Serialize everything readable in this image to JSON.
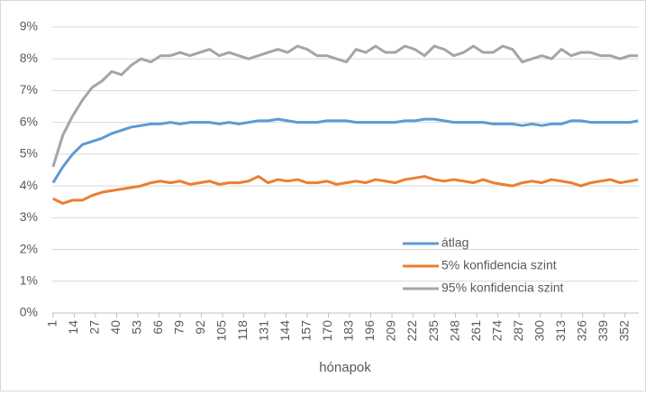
{
  "chart_data": {
    "type": "line",
    "x_label": "hónapok",
    "x": [
      1,
      7,
      13,
      19,
      25,
      31,
      37,
      43,
      49,
      55,
      61,
      67,
      73,
      79,
      85,
      91,
      97,
      103,
      109,
      115,
      121,
      127,
      133,
      139,
      145,
      151,
      157,
      163,
      169,
      175,
      181,
      187,
      193,
      199,
      205,
      211,
      217,
      223,
      229,
      235,
      241,
      247,
      253,
      259,
      265,
      271,
      277,
      283,
      289,
      295,
      301,
      307,
      313,
      319,
      325,
      331,
      337,
      343,
      349,
      355,
      360
    ],
    "series": [
      {
        "name": "átlag",
        "color": "#5b9bd5",
        "values": [
          4.1,
          4.6,
          5.0,
          5.3,
          5.4,
          5.5,
          5.65,
          5.75,
          5.85,
          5.9,
          5.95,
          5.95,
          6.0,
          5.95,
          6.0,
          6.0,
          6.0,
          5.95,
          6.0,
          5.95,
          6.0,
          6.05,
          6.05,
          6.1,
          6.05,
          6.0,
          6.0,
          6.0,
          6.05,
          6.05,
          6.05,
          6.0,
          6.0,
          6.0,
          6.0,
          6.0,
          6.05,
          6.05,
          6.1,
          6.1,
          6.05,
          6.0,
          6.0,
          6.0,
          6.0,
          5.95,
          5.95,
          5.95,
          5.9,
          5.95,
          5.9,
          5.95,
          5.95,
          6.05,
          6.05,
          6.0,
          6.0,
          6.0,
          6.0,
          6.0,
          6.05
        ]
      },
      {
        "name": "5% konfidencia szint",
        "color": "#ed7d31",
        "values": [
          3.6,
          3.45,
          3.55,
          3.55,
          3.7,
          3.8,
          3.85,
          3.9,
          3.95,
          4.0,
          4.1,
          4.15,
          4.1,
          4.15,
          4.05,
          4.1,
          4.15,
          4.05,
          4.1,
          4.1,
          4.15,
          4.3,
          4.1,
          4.2,
          4.15,
          4.2,
          4.1,
          4.1,
          4.15,
          4.05,
          4.1,
          4.15,
          4.1,
          4.2,
          4.15,
          4.1,
          4.2,
          4.25,
          4.3,
          4.2,
          4.15,
          4.2,
          4.15,
          4.1,
          4.2,
          4.1,
          4.05,
          4.0,
          4.1,
          4.15,
          4.1,
          4.2,
          4.15,
          4.1,
          4.0,
          4.1,
          4.15,
          4.2,
          4.1,
          4.15,
          4.2
        ]
      },
      {
        "name": "95% konfidencia szint",
        "color": "#a5a5a5",
        "values": [
          4.6,
          5.6,
          6.2,
          6.7,
          7.1,
          7.3,
          7.6,
          7.5,
          7.8,
          8.0,
          7.9,
          8.1,
          8.1,
          8.2,
          8.1,
          8.2,
          8.3,
          8.1,
          8.2,
          8.1,
          8.0,
          8.1,
          8.2,
          8.3,
          8.2,
          8.4,
          8.3,
          8.1,
          8.1,
          8.0,
          7.9,
          8.3,
          8.2,
          8.4,
          8.2,
          8.2,
          8.4,
          8.3,
          8.1,
          8.4,
          8.3,
          8.1,
          8.2,
          8.4,
          8.2,
          8.2,
          8.4,
          8.3,
          7.9,
          8.0,
          8.1,
          8.0,
          8.3,
          8.1,
          8.2,
          8.2,
          8.1,
          8.1,
          8.0,
          8.1,
          8.1
        ]
      }
    ],
    "xlim": [
      0.5,
      360.5
    ],
    "xticks": [
      1,
      14,
      27,
      40,
      53,
      66,
      79,
      92,
      105,
      118,
      131,
      144,
      157,
      170,
      183,
      196,
      209,
      222,
      235,
      248,
      261,
      274,
      287,
      300,
      313,
      326,
      339,
      352
    ],
    "ylim": [
      0,
      9
    ],
    "yticks": [
      {
        "value": 0,
        "label": "0%"
      },
      {
        "value": 1,
        "label": "1%"
      },
      {
        "value": 2,
        "label": "2%"
      },
      {
        "value": 3,
        "label": "3%"
      },
      {
        "value": 4,
        "label": "4%"
      },
      {
        "value": 5,
        "label": "5%"
      },
      {
        "value": 6,
        "label": "6%"
      },
      {
        "value": 7,
        "label": "7%"
      },
      {
        "value": 8,
        "label": "8%"
      },
      {
        "value": 9,
        "label": "9%"
      }
    ],
    "grid": true,
    "legend": "lower right"
  }
}
